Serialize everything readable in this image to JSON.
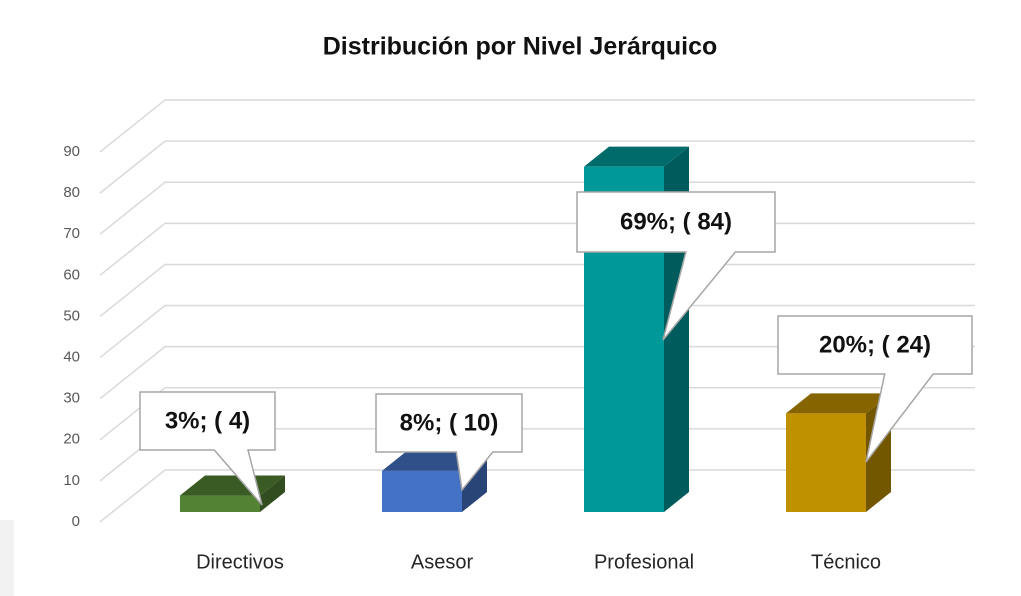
{
  "chart_data": {
    "type": "bar3d",
    "title": "Distribución por Nivel Jerárquico",
    "categories": [
      "Directivos",
      "Asesor",
      "Profesional",
      "Técnico"
    ],
    "values": [
      4,
      10,
      84,
      24
    ],
    "value_labels": [
      "3%; ( 4)",
      "8%; ( 10)",
      "69%; ( 84)",
      "20%; ( 24)"
    ],
    "colors": [
      "#548235",
      "#4472c4",
      "#009999",
      "#bf9000"
    ],
    "ylim": [
      0,
      90
    ],
    "yticks": [
      0,
      10,
      20,
      30,
      40,
      50,
      60,
      70,
      80,
      90
    ],
    "grid": true
  }
}
